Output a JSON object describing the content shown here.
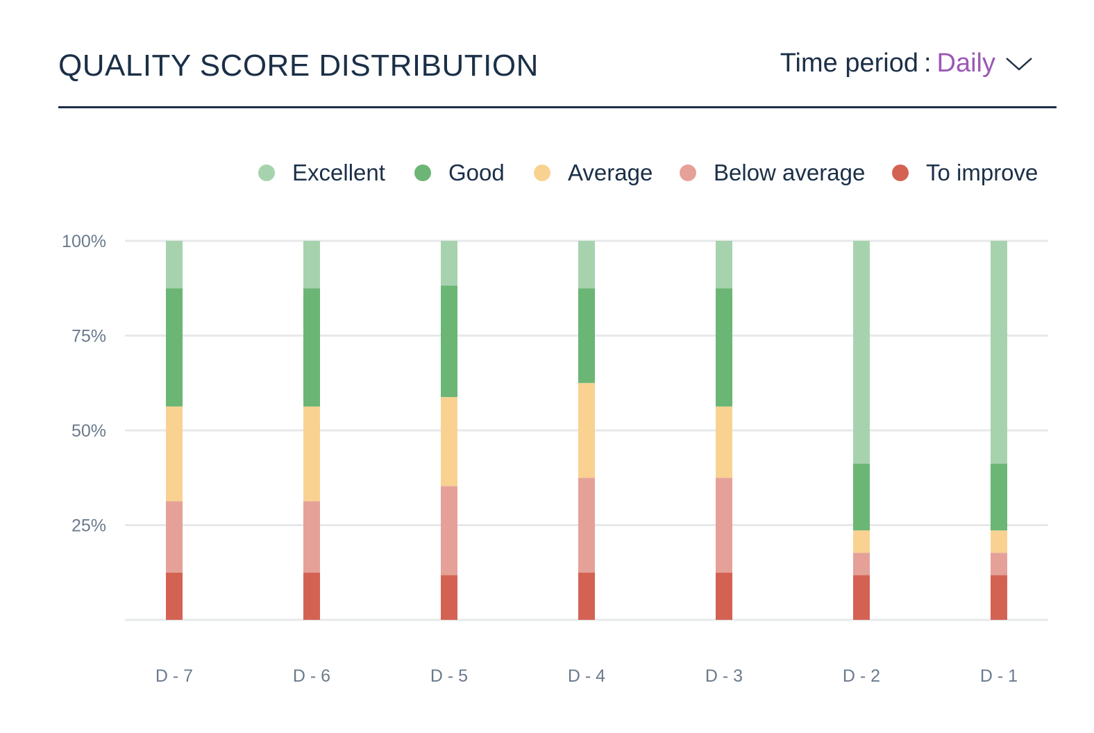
{
  "header": {
    "title": "QUALITY SCORE DISTRIBUTION",
    "period_label": "Time period",
    "period_sep": ":",
    "period_value": "Daily"
  },
  "chart_data": {
    "type": "bar",
    "stacked": true,
    "categories": [
      "D - 7",
      "D - 6",
      "D - 5",
      "D - 4",
      "D - 3",
      "D - 2",
      "D - 1"
    ],
    "ylim": [
      0,
      100
    ],
    "y_ticks": [
      25,
      50,
      75,
      100
    ],
    "y_tick_labels": [
      "25%",
      "50%",
      "75%",
      "100%"
    ],
    "grid": true,
    "legend_position": "top-right",
    "series": [
      {
        "name": "To improve",
        "color": "#d46253",
        "values": [
          12.5,
          12.5,
          11.8,
          12.5,
          12.5,
          11.8,
          11.8
        ]
      },
      {
        "name": "Below average",
        "color": "#e5a198",
        "values": [
          18.8,
          18.8,
          23.5,
          25.0,
          25.0,
          5.9,
          5.9
        ]
      },
      {
        "name": "Average",
        "color": "#f9d292",
        "values": [
          25.0,
          25.0,
          23.5,
          25.0,
          18.8,
          5.9,
          5.9
        ]
      },
      {
        "name": "Good",
        "color": "#6bb575",
        "values": [
          31.2,
          31.2,
          29.4,
          25.0,
          31.2,
          17.6,
          17.6
        ]
      },
      {
        "name": "Excellent",
        "color": "#a6d3ad",
        "values": [
          12.5,
          12.5,
          11.8,
          12.5,
          12.5,
          58.8,
          58.8
        ]
      }
    ],
    "legend_order": [
      "Excellent",
      "Good",
      "Average",
      "Below average",
      "To improve"
    ]
  }
}
